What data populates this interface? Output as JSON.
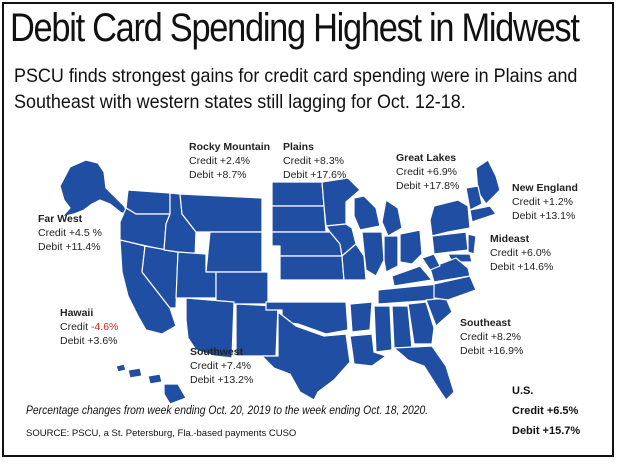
{
  "title": "Debit Card Spending Highest in Midwest",
  "subtitle": "PSCU finds strongest gains for credit card spending were in Plains and Southeast with western states still lagging for Oct. 12-18.",
  "colors": {
    "map_fill": "#1f4ea3",
    "border": "#ffffff",
    "negative": "#d42020"
  },
  "regions": [
    {
      "key": "rocky",
      "name": "Rocky Mountain",
      "credit": "Credit +2.4%",
      "debit": "Debit +8.7%"
    },
    {
      "key": "plains",
      "name": "Plains",
      "credit": "Credit +8.3%",
      "debit": "Debit +17.6%"
    },
    {
      "key": "greatlakes",
      "name": "Great Lakes",
      "credit": "Credit +6.9%",
      "debit": "Debit +17.8%"
    },
    {
      "key": "newengland",
      "name": "New England",
      "credit": "Credit +1.2%",
      "debit": "Debit +13.1%"
    },
    {
      "key": "farwest",
      "name": "Far West",
      "credit": "Credit +4.5 %",
      "debit": "Debit +11.4%"
    },
    {
      "key": "mideast",
      "name": "Mideast",
      "credit": "Credit +6.0%",
      "debit": "Debit +14.6%"
    },
    {
      "key": "hawaii",
      "name": "Hawaii",
      "credit_label": "Credit",
      "credit_value": "-4.6%",
      "debit": "Debit +3.6%"
    },
    {
      "key": "southeast",
      "name": "Southeast",
      "credit": "Credit +8.2%",
      "debit": "Debit +16.9%"
    },
    {
      "key": "southwest",
      "name": "Southwest",
      "credit": "Credit +7.4%",
      "debit": "Debit +13.2%"
    }
  ],
  "us": {
    "label": "U.S.",
    "credit": "Credit  +6.5%",
    "debit": "Debit +15.7%"
  },
  "footnote": "Percentage changes from week ending Oct. 20, 2019 to the week ending Oct. 18, 2020.",
  "source": "SOURCE: PSCU, a St. Petersburg, Fla.-based payments CUSO"
}
